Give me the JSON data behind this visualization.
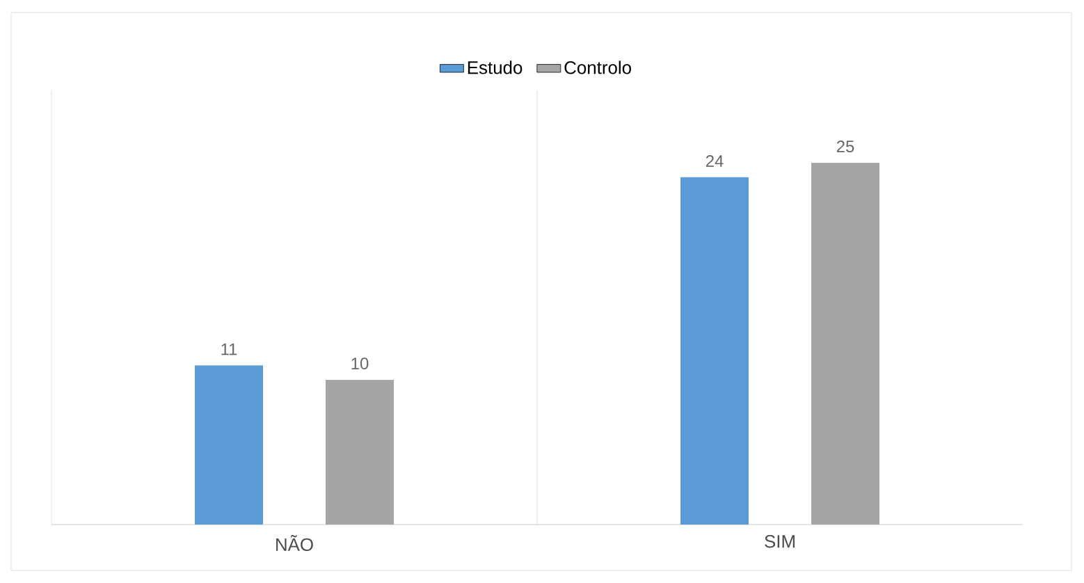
{
  "chart_data": {
    "type": "bar",
    "categories": [
      "NÃO",
      "SIM"
    ],
    "series": [
      {
        "name": "Estudo",
        "color": "#5b9bd5",
        "values": [
          11,
          24
        ]
      },
      {
        "name": "Controlo",
        "color": "#a5a5a5",
        "values": [
          10,
          25
        ]
      }
    ],
    "data_labels": true,
    "grid": "x",
    "legend": "top"
  }
}
